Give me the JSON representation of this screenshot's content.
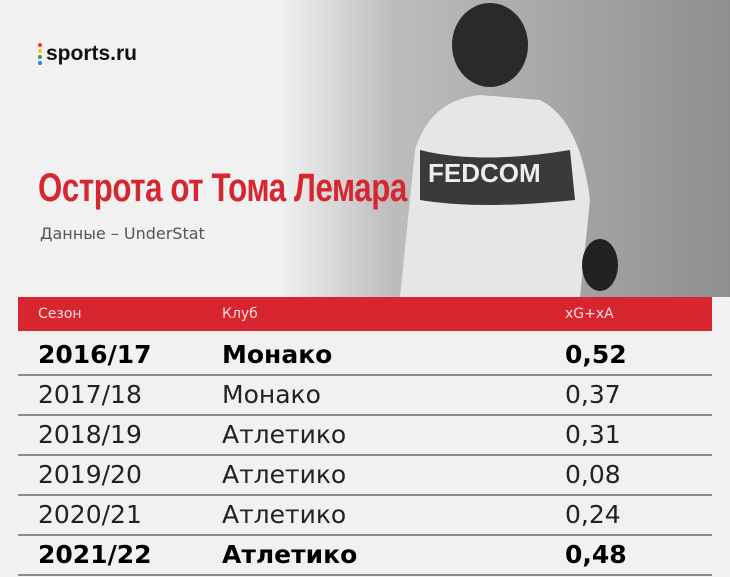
{
  "logo": "sports.ru",
  "header": {
    "title": "Острота от Тома Лемара",
    "subtitle": "Данные – UnderStat"
  },
  "table": {
    "columns": [
      "Сезон",
      "Клуб",
      "xG+xA"
    ],
    "rows": [
      [
        "2016/17",
        "Монако",
        "0,52"
      ],
      [
        "2017/18",
        "Монако",
        "0,37"
      ],
      [
        "2018/19",
        "Атлетико",
        "0,31"
      ],
      [
        "2019/20",
        "Атлетико",
        "0,08"
      ],
      [
        "2020/21",
        "Атлетико",
        "0,24"
      ],
      [
        "2021/22",
        "Атлетико",
        "0,48"
      ]
    ]
  }
}
